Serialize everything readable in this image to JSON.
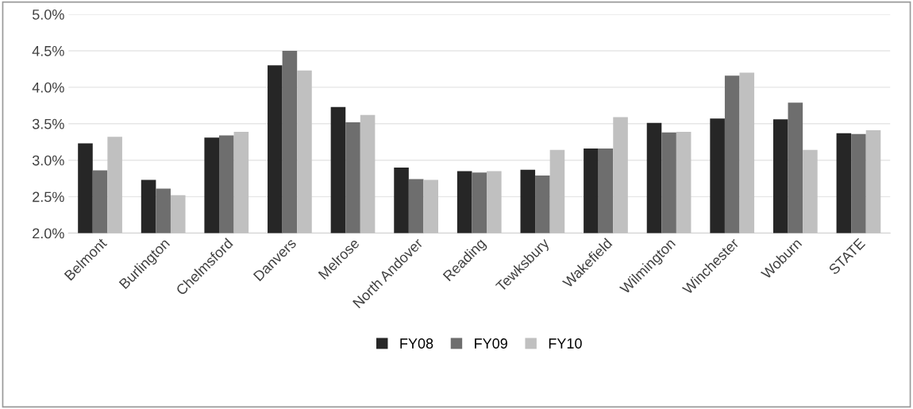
{
  "chart_data": {
    "type": "bar",
    "categories": [
      "Belmont",
      "Burlington",
      "Chelmsford",
      "Danvers",
      "Melrose",
      "North Andover",
      "Reading",
      "Tewksbury",
      "Wakefield",
      "Wilmington",
      "Winchester",
      "Woburn",
      "STATE"
    ],
    "series": [
      {
        "name": "FY08",
        "color": "#262626",
        "values": [
          3.23,
          2.73,
          3.31,
          4.3,
          3.73,
          2.9,
          2.85,
          2.87,
          3.16,
          3.51,
          3.57,
          3.56,
          3.37
        ]
      },
      {
        "name": "FY09",
        "color": "#6e6e6e",
        "values": [
          2.86,
          2.61,
          3.34,
          4.5,
          3.52,
          2.74,
          2.83,
          2.79,
          3.16,
          3.38,
          4.16,
          3.79,
          3.36
        ]
      },
      {
        "name": "FY10",
        "color": "#c0c0c0",
        "values": [
          3.32,
          2.52,
          3.39,
          4.23,
          3.62,
          2.73,
          2.85,
          3.14,
          3.59,
          3.39,
          4.2,
          3.14,
          3.41
        ]
      }
    ],
    "ylim": [
      2.0,
      5.0
    ],
    "yticks": [
      {
        "value": 2.0,
        "label": "2.0%"
      },
      {
        "value": 2.5,
        "label": "2.5%"
      },
      {
        "value": 3.0,
        "label": "3.0%"
      },
      {
        "value": 3.5,
        "label": "3.5%"
      },
      {
        "value": 4.0,
        "label": "4.0%"
      },
      {
        "value": 4.5,
        "label": "4.5%"
      },
      {
        "value": 5.0,
        "label": "5.0%"
      }
    ],
    "grid": "y",
    "legend": "bottom"
  }
}
